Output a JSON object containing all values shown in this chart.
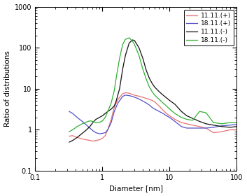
{
  "title": "",
  "xlabel": "Diameter [nm]",
  "ylabel": "Ratio of distributions",
  "xlim": [
    0.1,
    100
  ],
  "ylim": [
    0.1,
    1000
  ],
  "legend_labels": [
    "11.11.(+)",
    "18.11.(+)",
    "11.11.(-)",
    "18.11.(-)"
  ],
  "legend_colors": [
    "#e87070",
    "#5050c8",
    "#111111",
    "#30b030"
  ],
  "background_color": "#ffffff",
  "figsize": [
    3.53,
    2.8
  ],
  "dpi": 100,
  "series": {
    "red": {
      "x": [
        0.32,
        0.36,
        0.42,
        0.5,
        0.58,
        0.65,
        0.72,
        0.8,
        0.9,
        1.0,
        1.1,
        1.2,
        1.35,
        1.5,
        1.7,
        2.0,
        2.2,
        2.5,
        2.8,
        3.2,
        3.6,
        4.0,
        4.5,
        5.0,
        5.5,
        6.0,
        7.0,
        8.0,
        9.0,
        10.0,
        12.0,
        15.0,
        18.0,
        22.0,
        28.0,
        35.0,
        45.0,
        60.0,
        80.0,
        100.0
      ],
      "y": [
        0.7,
        0.72,
        0.65,
        0.6,
        0.57,
        0.55,
        0.53,
        0.55,
        0.57,
        0.62,
        0.72,
        1.0,
        1.8,
        3.5,
        5.5,
        7.5,
        8.0,
        7.8,
        7.2,
        6.8,
        6.5,
        6.2,
        5.8,
        5.5,
        5.2,
        4.8,
        3.8,
        3.0,
        2.5,
        2.2,
        1.8,
        1.5,
        1.4,
        1.3,
        1.2,
        1.1,
        0.85,
        0.9,
        1.0,
        1.0
      ]
    },
    "blue": {
      "x": [
        0.32,
        0.36,
        0.42,
        0.5,
        0.58,
        0.65,
        0.72,
        0.8,
        0.9,
        1.0,
        1.1,
        1.2,
        1.35,
        1.5,
        1.7,
        2.0,
        2.2,
        2.5,
        2.8,
        3.2,
        3.6,
        4.0,
        4.5,
        5.0,
        5.5,
        6.0,
        7.0,
        8.0,
        9.0,
        10.0,
        12.0,
        15.0,
        18.0,
        22.0,
        28.0,
        35.0,
        45.0,
        60.0,
        80.0,
        100.0
      ],
      "y": [
        2.8,
        2.5,
        2.0,
        1.6,
        1.3,
        1.1,
        0.95,
        0.85,
        0.8,
        0.82,
        0.85,
        1.0,
        1.5,
        2.8,
        4.5,
        6.5,
        7.0,
        6.8,
        6.5,
        6.0,
        5.5,
        5.0,
        4.5,
        4.0,
        3.5,
        3.2,
        2.8,
        2.5,
        2.2,
        2.0,
        1.6,
        1.2,
        1.1,
        1.1,
        1.1,
        1.1,
        1.15,
        1.25,
        1.3,
        1.35
      ]
    },
    "black": {
      "x": [
        0.32,
        0.36,
        0.42,
        0.5,
        0.58,
        0.65,
        0.72,
        0.8,
        0.9,
        1.0,
        1.1,
        1.2,
        1.35,
        1.5,
        1.6,
        1.8,
        2.0,
        2.2,
        2.5,
        2.8,
        3.0,
        3.5,
        4.0,
        4.5,
        5.0,
        5.5,
        6.0,
        7.0,
        8.0,
        9.0,
        10.0,
        12.0,
        15.0,
        18.0,
        22.0,
        28.0,
        35.0,
        45.0,
        60.0,
        80.0,
        100.0
      ],
      "y": [
        0.5,
        0.55,
        0.65,
        0.82,
        1.0,
        1.2,
        1.5,
        1.8,
        2.0,
        2.2,
        2.5,
        2.8,
        3.2,
        3.8,
        5.0,
        10.0,
        30.0,
        65.0,
        130.0,
        155.0,
        150.0,
        100.0,
        55.0,
        28.0,
        18.0,
        13.5,
        11.0,
        8.5,
        7.0,
        6.0,
        5.2,
        4.2,
        2.8,
        2.2,
        1.9,
        1.6,
        1.4,
        1.3,
        1.2,
        1.15,
        1.2
      ]
    },
    "green": {
      "x": [
        0.32,
        0.36,
        0.42,
        0.5,
        0.58,
        0.65,
        0.72,
        0.8,
        0.9,
        1.0,
        1.1,
        1.2,
        1.35,
        1.5,
        1.6,
        1.8,
        2.0,
        2.2,
        2.5,
        2.8,
        3.0,
        3.5,
        4.0,
        4.5,
        5.0,
        5.5,
        6.0,
        7.0,
        8.0,
        9.0,
        10.0,
        12.0,
        15.0,
        18.0,
        22.0,
        28.0,
        35.0,
        45.0,
        60.0,
        80.0,
        100.0
      ],
      "y": [
        0.9,
        1.0,
        1.2,
        1.4,
        1.55,
        1.65,
        1.6,
        1.5,
        1.5,
        1.65,
        2.0,
        2.8,
        4.5,
        9.0,
        18.0,
        55.0,
        120.0,
        160.0,
        175.0,
        145.0,
        120.0,
        65.0,
        30.0,
        17.0,
        11.0,
        8.5,
        7.0,
        5.5,
        4.5,
        3.8,
        3.2,
        2.5,
        2.0,
        1.8,
        1.7,
        2.8,
        2.6,
        1.5,
        1.4,
        1.5,
        1.5
      ]
    }
  }
}
